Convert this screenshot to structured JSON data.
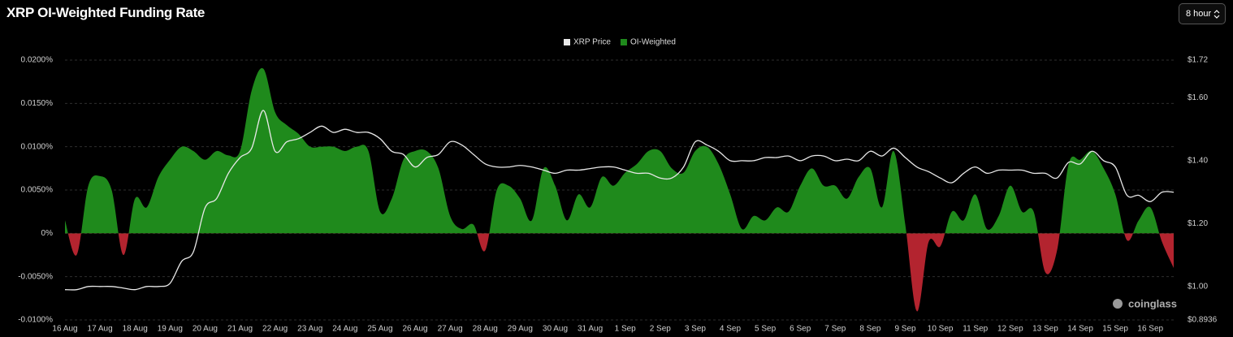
{
  "header": {
    "title": "XRP OI-Weighted Funding Rate",
    "interval_select": "8 hour"
  },
  "chart_data": {
    "type": "area",
    "categories": [
      "16 Aug",
      null,
      null,
      "17 Aug",
      null,
      null,
      "18 Aug",
      null,
      null,
      "19 Aug",
      null,
      null,
      "20 Aug",
      null,
      null,
      "21 Aug",
      null,
      null,
      "22 Aug",
      null,
      null,
      "23 Aug",
      null,
      null,
      "24 Aug",
      null,
      null,
      "25 Aug",
      null,
      null,
      "26 Aug",
      null,
      null,
      "27 Aug",
      null,
      null,
      "28 Aug",
      null,
      null,
      "29 Aug",
      null,
      null,
      "30 Aug",
      null,
      null,
      "31 Aug",
      null,
      null,
      "1 Sep",
      null,
      null,
      "2 Sep",
      null,
      null,
      "3 Sep",
      null,
      null,
      "4 Sep",
      null,
      null,
      "5 Sep",
      null,
      null,
      "6 Sep",
      null,
      null,
      "7 Sep",
      null,
      null,
      "8 Sep",
      null,
      null,
      "9 Sep",
      null,
      null,
      "10 Sep",
      null,
      null,
      "11 Sep",
      null,
      null,
      "12 Sep",
      null,
      null,
      "13 Sep",
      null,
      null,
      "14 Sep",
      null,
      null,
      "15 Sep",
      null,
      null,
      "16 Sep",
      null,
      null
    ],
    "series": [
      {
        "name": "XRP Price",
        "type": "line",
        "color": "#e8e8e8",
        "axis": "y2",
        "values": [
          0.99,
          0.99,
          1.0,
          1.0,
          1.0,
          0.995,
          0.99,
          1.0,
          1.0,
          1.01,
          1.08,
          1.11,
          1.25,
          1.28,
          1.36,
          1.41,
          1.44,
          1.56,
          1.43,
          1.46,
          1.47,
          1.49,
          1.51,
          1.49,
          1.5,
          1.49,
          1.49,
          1.47,
          1.43,
          1.42,
          1.38,
          1.41,
          1.42,
          1.46,
          1.45,
          1.42,
          1.39,
          1.38,
          1.38,
          1.385,
          1.38,
          1.37,
          1.36,
          1.37,
          1.37,
          1.375,
          1.38,
          1.38,
          1.37,
          1.36,
          1.36,
          1.345,
          1.345,
          1.38,
          1.46,
          1.45,
          1.43,
          1.4,
          1.4,
          1.4,
          1.41,
          1.41,
          1.415,
          1.4,
          1.415,
          1.415,
          1.4,
          1.405,
          1.4,
          1.43,
          1.415,
          1.44,
          1.41,
          1.38,
          1.365,
          1.345,
          1.33,
          1.36,
          1.38,
          1.36,
          1.37,
          1.37,
          1.37,
          1.36,
          1.36,
          1.345,
          1.395,
          1.39,
          1.43,
          1.4,
          1.38,
          1.29,
          1.29,
          1.27,
          1.3,
          1.3
        ]
      },
      {
        "name": "OI-Weighted",
        "type": "area",
        "color": "#1f8a1c",
        "negative_color": "#b3242f",
        "values": [
          0.0015,
          -0.0025,
          0.0055,
          0.0066,
          0.005,
          -0.0025,
          0.004,
          0.003,
          0.0065,
          0.0085,
          0.01,
          0.0095,
          0.0085,
          0.0095,
          0.009,
          0.0095,
          0.0165,
          0.019,
          0.014,
          0.0125,
          0.0115,
          0.01,
          0.01,
          0.01,
          0.0095,
          0.01,
          0.0095,
          0.0025,
          0.004,
          0.0085,
          0.0095,
          0.0095,
          0.0075,
          0.002,
          0.0005,
          0.001,
          -0.002,
          0.005,
          0.0055,
          0.004,
          0.0015,
          0.0075,
          0.0055,
          0.0015,
          0.0045,
          0.003,
          0.0065,
          0.0055,
          0.007,
          0.008,
          0.0095,
          0.0095,
          0.0075,
          0.007,
          0.0095,
          0.01,
          0.008,
          0.0045,
          0.0005,
          0.002,
          0.0015,
          0.003,
          0.0025,
          0.0055,
          0.0075,
          0.0055,
          0.0055,
          0.004,
          0.0065,
          0.0075,
          0.003,
          0.0095,
          0.001,
          -0.009,
          -0.001,
          -0.0015,
          0.0025,
          0.0015,
          0.0045,
          0.0005,
          0.002,
          0.0055,
          0.0025,
          0.0025,
          -0.0045,
          -0.002,
          0.008,
          0.0085,
          0.0095,
          0.0075,
          0.0045,
          -0.0008,
          0.0015,
          0.003,
          -0.001,
          -0.004
        ]
      }
    ],
    "ylim": [
      -0.01,
      0.02
    ],
    "yticks": [
      {
        "value": 0.02,
        "label": "0.0200%"
      },
      {
        "value": 0.015,
        "label": "0.0150%"
      },
      {
        "value": 0.01,
        "label": "0.0100%"
      },
      {
        "value": 0.005,
        "label": "0.0050%"
      },
      {
        "value": 0,
        "label": "0%"
      },
      {
        "value": -0.005,
        "label": "-0.0050%"
      },
      {
        "value": -0.01,
        "label": "-0.0100%"
      }
    ],
    "y2lim": [
      0.8936,
      1.72
    ],
    "y2ticks": [
      {
        "value": 1.72,
        "label": "$1.72"
      },
      {
        "value": 1.6,
        "label": "$1.60"
      },
      {
        "value": 1.4,
        "label": "$1.40"
      },
      {
        "value": 1.2,
        "label": "$1.20"
      },
      {
        "value": 1.0,
        "label": "$1.00"
      },
      {
        "value": 0.8936,
        "label": "$0.8936"
      }
    ],
    "grid": true,
    "legend": "top"
  },
  "watermark": "coinglass"
}
